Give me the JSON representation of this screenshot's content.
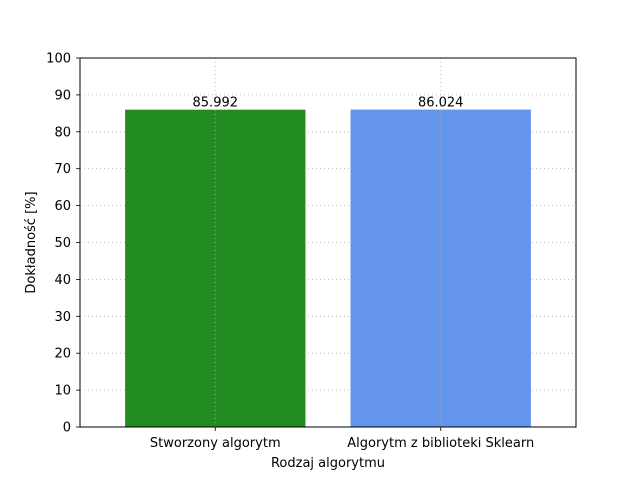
{
  "chart_data": {
    "type": "bar",
    "title": "",
    "xlabel": "Rodzaj algorytmu",
    "ylabel": "Dokładność [%]",
    "categories": [
      "Stworzony algorytm",
      "Algorytm z biblioteki Sklearn"
    ],
    "values": [
      85.992,
      86.024
    ],
    "value_labels": [
      "85.992",
      "86.024"
    ],
    "colors": [
      "#228b22",
      "#6495ed"
    ],
    "ylim": [
      0,
      100
    ],
    "yticks": [
      0,
      10,
      20,
      30,
      40,
      50,
      60,
      70,
      80,
      90,
      100
    ],
    "grid": true,
    "grid_style": "dotted"
  }
}
